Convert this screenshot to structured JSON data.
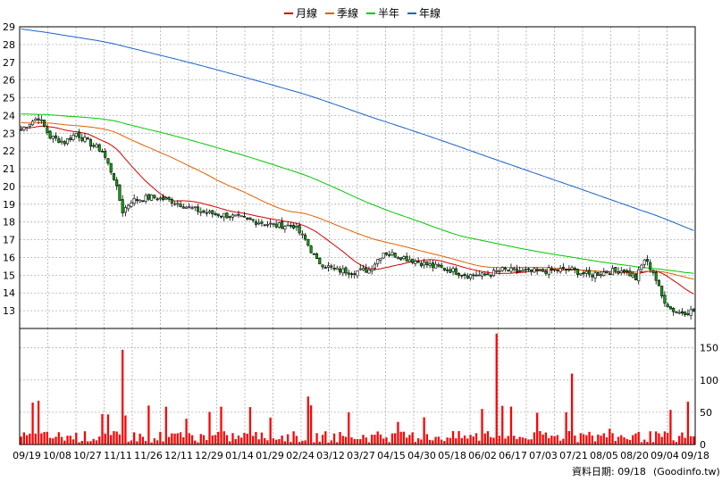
{
  "chart_data": {
    "type": "candlestick",
    "legend": [
      {
        "name": "月線",
        "color": "#d40000"
      },
      {
        "name": "季線",
        "color": "#e06000"
      },
      {
        "name": "半年",
        "color": "#00c800"
      },
      {
        "name": "年線",
        "color": "#1a63c8"
      }
    ],
    "price_axis": {
      "min": 12,
      "max": 29,
      "ticks": [
        13,
        14,
        15,
        16,
        17,
        18,
        19,
        20,
        21,
        22,
        23,
        24,
        25,
        26,
        27,
        28,
        29
      ]
    },
    "volume_axis": {
      "min": 0,
      "max": 180,
      "ticks": [
        0,
        50,
        100,
        150
      ]
    },
    "x_tick_labels": [
      "09/19",
      "10/08",
      "10/27",
      "11/11",
      "11/26",
      "12/11",
      "12/29",
      "01/14",
      "01/29",
      "02/24",
      "03/12",
      "03/27",
      "04/15",
      "04/30",
      "05/18",
      "06/02",
      "06/17",
      "07/03",
      "07/21",
      "08/05",
      "08/20",
      "09/04",
      "09/18"
    ],
    "price_anchors": [
      {
        "t": 0,
        "p": 23.2
      },
      {
        "t": 3,
        "p": 23.6
      },
      {
        "t": 6,
        "p": 23.9
      },
      {
        "t": 10,
        "p": 22.8
      },
      {
        "t": 15,
        "p": 22.5
      },
      {
        "t": 19,
        "p": 23.0
      },
      {
        "t": 23,
        "p": 22.5
      },
      {
        "t": 28,
        "p": 22.0
      },
      {
        "t": 32,
        "p": 20.5
      },
      {
        "t": 35,
        "p": 18.6
      },
      {
        "t": 38,
        "p": 19.2
      },
      {
        "t": 45,
        "p": 19.4
      },
      {
        "t": 52,
        "p": 19.2
      },
      {
        "t": 58,
        "p": 18.8
      },
      {
        "t": 64,
        "p": 18.5
      },
      {
        "t": 70,
        "p": 18.4
      },
      {
        "t": 76,
        "p": 18.2
      },
      {
        "t": 82,
        "p": 18.0
      },
      {
        "t": 88,
        "p": 17.8
      },
      {
        "t": 94,
        "p": 17.8
      },
      {
        "t": 98,
        "p": 17.0
      },
      {
        "t": 102,
        "p": 15.8
      },
      {
        "t": 108,
        "p": 15.3
      },
      {
        "t": 114,
        "p": 15.2
      },
      {
        "t": 120,
        "p": 15.3
      },
      {
        "t": 125,
        "p": 16.3
      },
      {
        "t": 130,
        "p": 16.1
      },
      {
        "t": 136,
        "p": 15.8
      },
      {
        "t": 142,
        "p": 15.5
      },
      {
        "t": 148,
        "p": 15.3
      },
      {
        "t": 154,
        "p": 15.0
      },
      {
        "t": 160,
        "p": 15.0
      },
      {
        "t": 166,
        "p": 15.3
      },
      {
        "t": 172,
        "p": 15.2
      },
      {
        "t": 178,
        "p": 15.2
      },
      {
        "t": 184,
        "p": 15.3
      },
      {
        "t": 190,
        "p": 15.3
      },
      {
        "t": 196,
        "p": 15.0
      },
      {
        "t": 202,
        "p": 15.2
      },
      {
        "t": 208,
        "p": 15.3
      },
      {
        "t": 212,
        "p": 14.8
      },
      {
        "t": 215,
        "p": 15.9
      },
      {
        "t": 218,
        "p": 15.2
      },
      {
        "t": 221,
        "p": 13.8
      },
      {
        "t": 224,
        "p": 13.1
      },
      {
        "t": 227,
        "p": 12.9
      },
      {
        "t": 232,
        "p": 13.0
      }
    ],
    "total_days": 233,
    "seed": 7
  },
  "footer": {
    "source_label": "資料日期: 09/18",
    "site_label": "(Goodinfo.tw)"
  },
  "colors": {
    "grid": "#b0b0b0",
    "up_candle": "#ffffff",
    "down_candle": "#00aa00",
    "candle_outline": "#000000",
    "volume_bar": "#ff0000"
  }
}
